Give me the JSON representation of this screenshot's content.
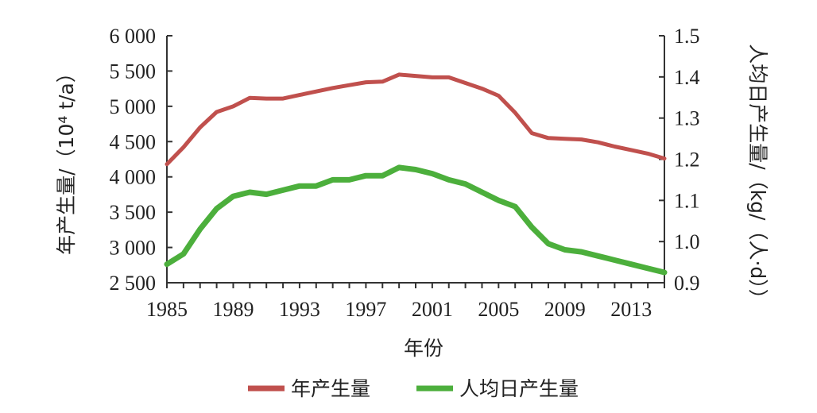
{
  "chart_data": {
    "type": "line",
    "xlabel": "年份",
    "ylabel_left": "年产生量/（10⁴ t/a）",
    "ylabel_right": "人均日产生量/（kg/（人·d））",
    "x_ticks": [
      "1985",
      "1989",
      "1993",
      "1997",
      "2001",
      "2005",
      "2009",
      "2013"
    ],
    "left_ticks": [
      "6 000",
      "5 500",
      "5 000",
      "4 500",
      "4 000",
      "3 500",
      "3 000",
      "2 500"
    ],
    "right_ticks": [
      "1.5",
      "1.4",
      "1.3",
      "1.2",
      "1.1",
      "1.0",
      "0.9"
    ],
    "xlim": [
      1985,
      2015
    ],
    "ylim_left": [
      2500,
      6000
    ],
    "ylim_right": [
      0.9,
      1.5
    ],
    "grid": false,
    "legend_position": "bottom",
    "x": [
      1985,
      1986,
      1987,
      1988,
      1989,
      1990,
      1991,
      1992,
      1993,
      1994,
      1995,
      1996,
      1997,
      1998,
      1999,
      2000,
      2001,
      2002,
      2003,
      2004,
      2005,
      2006,
      2007,
      2008,
      2009,
      2010,
      2011,
      2012,
      2013,
      2014,
      2015
    ],
    "series": [
      {
        "name": "年产生量",
        "axis": "left",
        "color": "#c0504d",
        "values": [
          4180,
          4420,
          4700,
          4920,
          5000,
          5120,
          5110,
          5110,
          5160,
          5210,
          5260,
          5300,
          5340,
          5350,
          5450,
          5430,
          5410,
          5410,
          5330,
          5250,
          5150,
          4910,
          4620,
          4550,
          4540,
          4530,
          4490,
          4430,
          4380,
          4330,
          4260
        ]
      },
      {
        "name": "人均日产生量",
        "axis": "right",
        "color": "#4caf3c",
        "values": [
          0.945,
          0.97,
          1.03,
          1.08,
          1.11,
          1.12,
          1.115,
          1.125,
          1.135,
          1.135,
          1.15,
          1.15,
          1.16,
          1.16,
          1.18,
          1.175,
          1.165,
          1.15,
          1.14,
          1.12,
          1.1,
          1.085,
          1.035,
          0.995,
          0.98,
          0.975,
          0.965,
          0.955,
          0.945,
          0.935,
          0.925
        ]
      }
    ]
  },
  "legend": {
    "item1": "年产生量",
    "item2": "人均日产生量"
  },
  "colors": {
    "series1": "#c0504d",
    "series2": "#4caf3c",
    "axis": "#333333"
  }
}
